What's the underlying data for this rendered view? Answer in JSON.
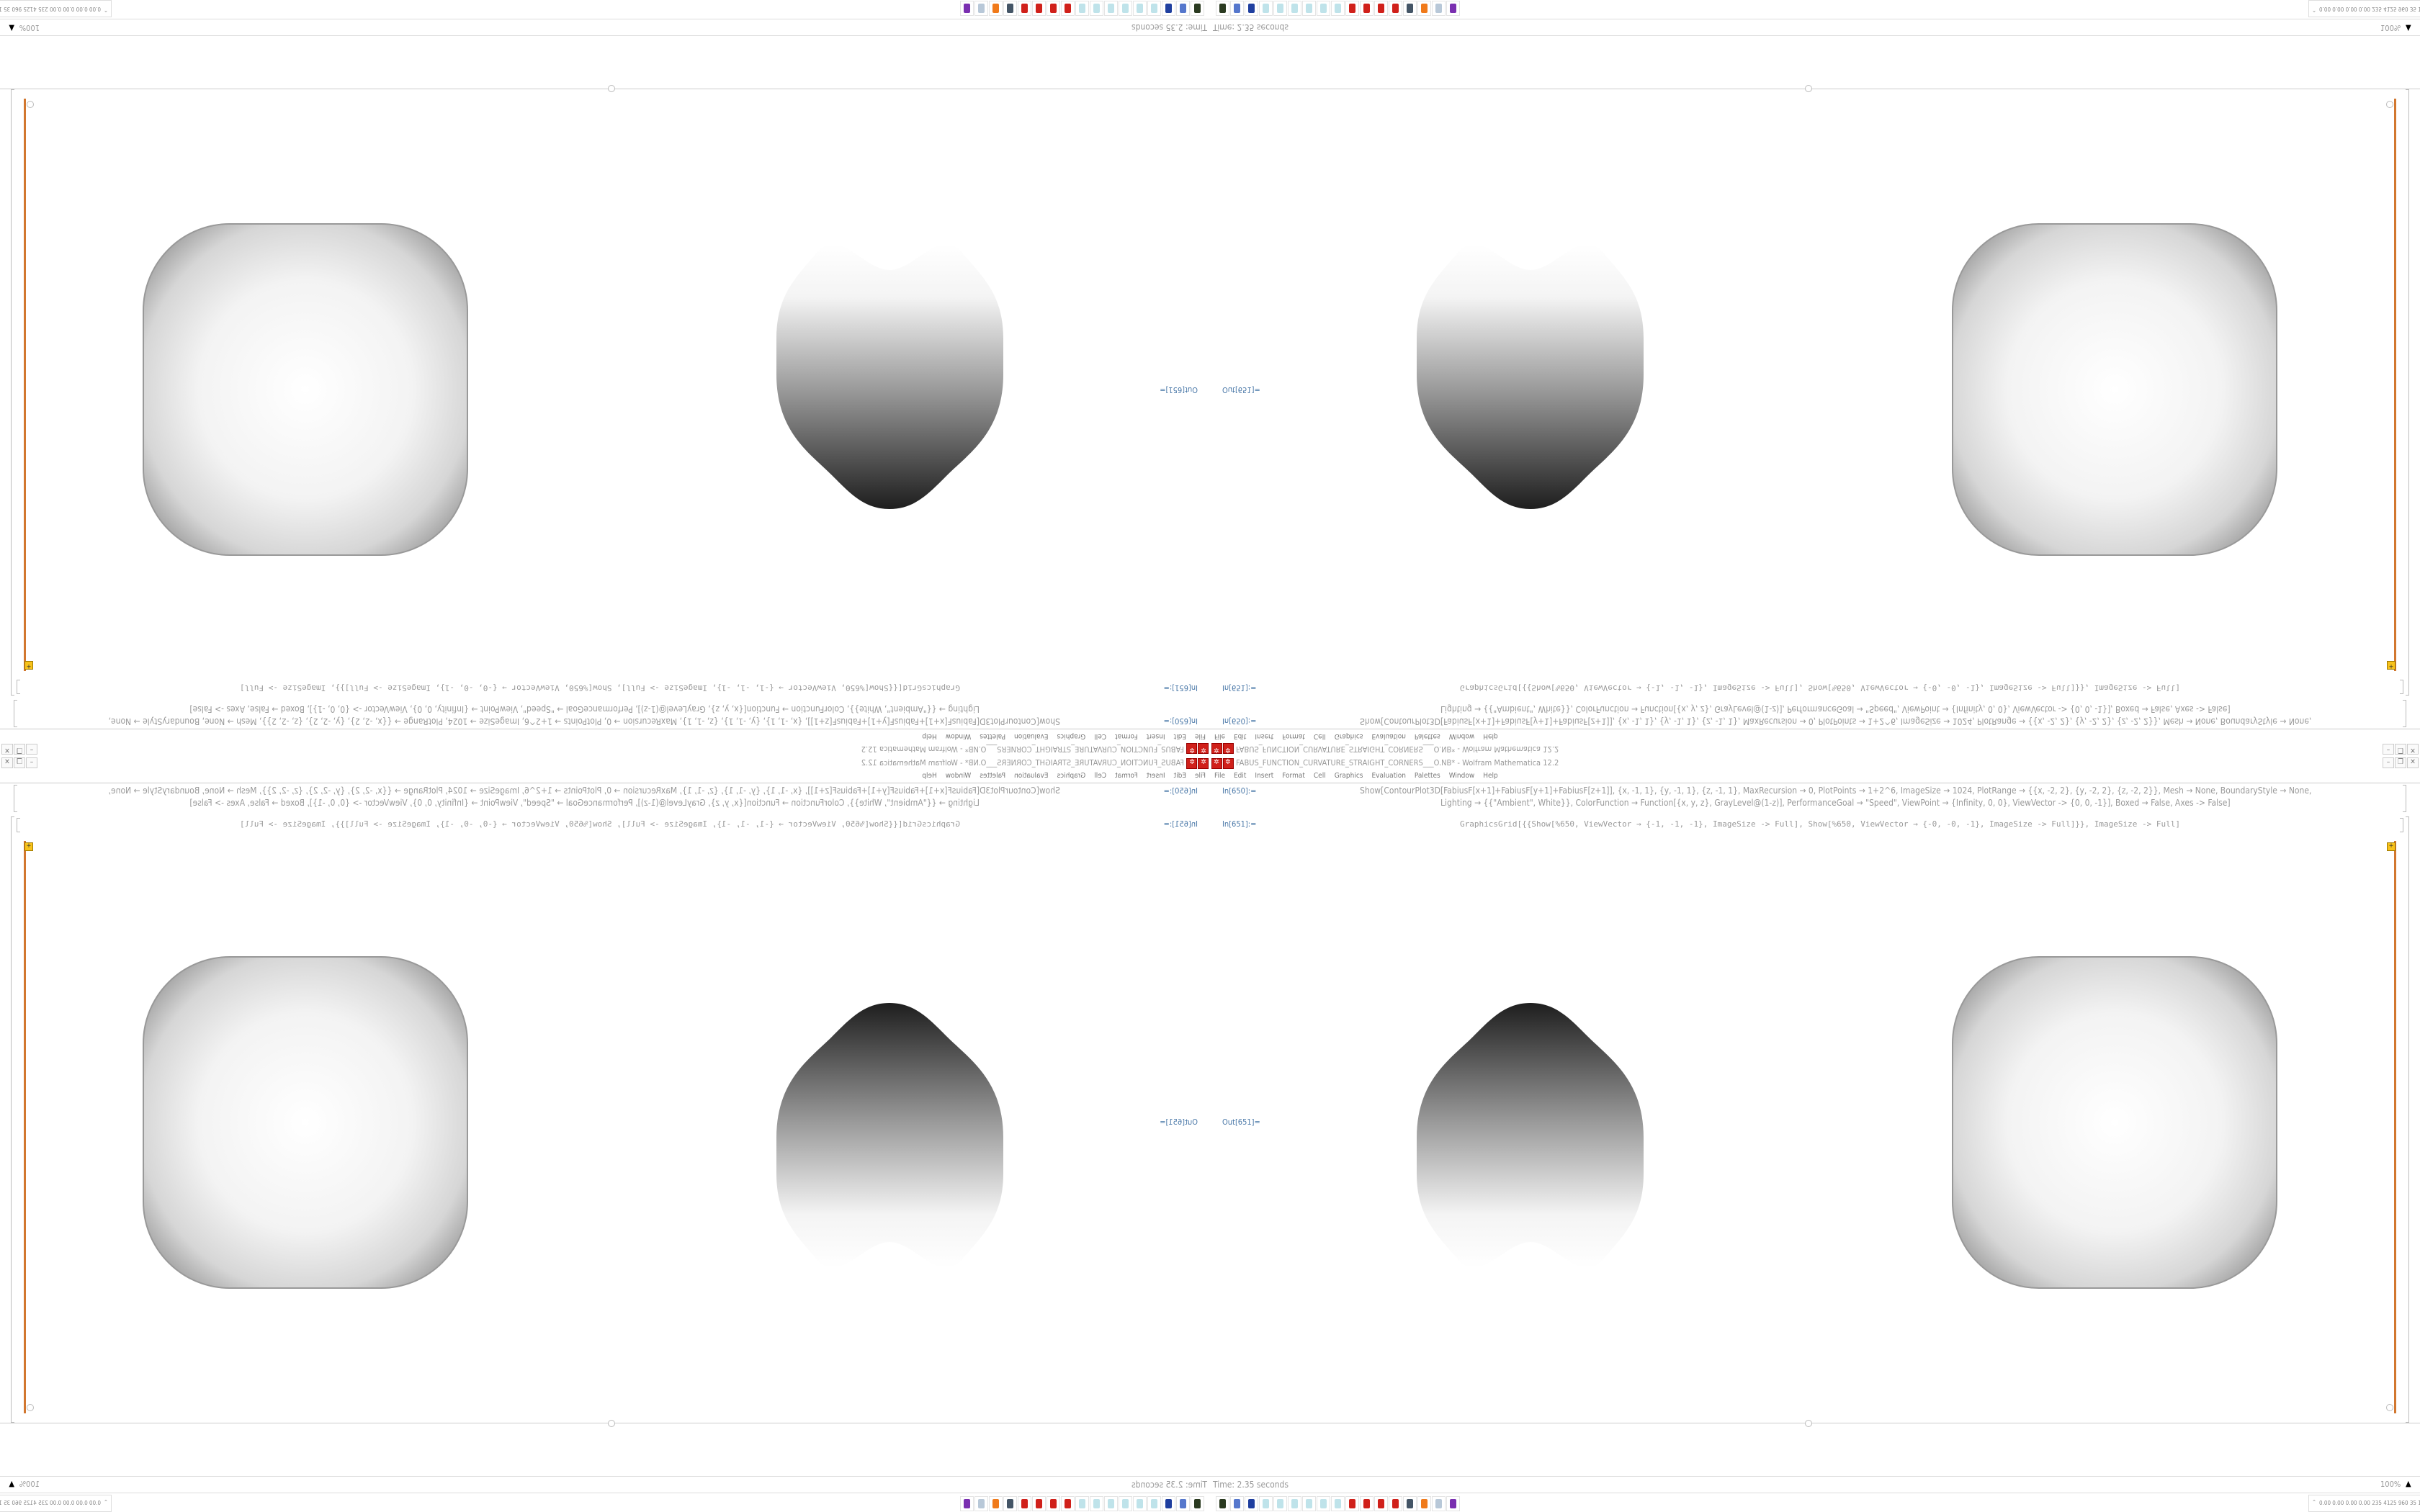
{
  "window": {
    "title": "FABUS_FUNCTION_CURVATURE_STRAIGHT_CORNERS___O.NB* - Wolfram Mathematica 12.2",
    "buttons": [
      "minimize",
      "restore",
      "close"
    ]
  },
  "menu": [
    "File",
    "Edit",
    "Insert",
    "Format",
    "Cell",
    "Graphics",
    "Evaluation",
    "Palettes",
    "Window",
    "Help"
  ],
  "cells": [
    {
      "label": "In[650]:=",
      "lines": [
        "Show[ContourPlot3D[FabiusF[x+1]+FabiusF[y+1]+FabiusF[z+1]], {x, -1, 1}, {y, -1, 1}, {z, -1, 1}, MaxRecursion → 0, PlotPoints → 1+2^6, ImageSize → 1024, PlotRange → {{x, -2, 2}, {y, -2, 2}, {z, -2, 2}}, Mesh → None, BoundaryStyle → None,",
        "Lighting → {{\"Ambient\", White}}, ColorFunction → Function[{x, y, z}, GrayLevel@(1-z)], PerformanceGoal → \"Speed\", ViewPoint → {Infinity, 0, 0}, ViewVector -> {0, 0, -1}], Boxed → False, Axes -> False]"
      ]
    },
    {
      "label": "In[651]:=",
      "lines": [
        "GraphicsGrid[{{Show[%650, ViewVector → {-1, -1, -1}, ImageSize -> Full], Show[%650, ViewVector → {-0, -0, -1}, ImageSize -> Full]}}, ImageSize -> Full]"
      ]
    },
    {
      "label": "Out[651]="
    }
  ],
  "status": {
    "time": "Time: 2.35 seconds",
    "zoom": "100%"
  },
  "taskbar": {
    "icons": [
      "terminal-icon",
      "monitor-icon",
      "floppy-icon",
      "notepad-icon",
      "notepad-icon",
      "notepad-icon",
      "notepad-icon",
      "notepad-icon",
      "notepad-icon",
      "mathematica-icon",
      "mathematica-icon",
      "mathematica-icon",
      "mathematica-icon",
      "network-icon",
      "firefox-icon",
      "scroll-icon",
      "purple-app-icon"
    ],
    "tray_values": "0.00 0.00 0.00 0.00 235 4125 960 35 178 273 3.0 1.5 37 33 4072 8227"
  },
  "colors": {
    "cell_bracket_selected": "#d2772f",
    "label_blue": "#4a78a8",
    "mathematica_red": "#d0201a"
  }
}
